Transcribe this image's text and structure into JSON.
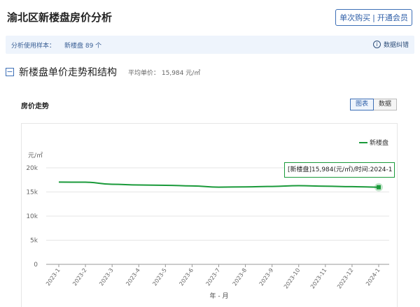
{
  "header": {
    "title": "渝北区新楼盘房价分析",
    "buy_single": "单次购买",
    "separator": "|",
    "open_member": "开通会员"
  },
  "sample": {
    "label": "分析使用样本：",
    "value": "新楼盘 89 个",
    "error_label": "数据纠错"
  },
  "section": {
    "title": "新楼盘单价走势和结构",
    "avg_label": "平均单价：",
    "avg_value": "15,984 元/㎡"
  },
  "chart_panel": {
    "title": "房价走势",
    "tab_chart": "图表",
    "tab_data": "数据",
    "tooltip": "[新楼盘]15,984(元/㎡)/时间:2024-1"
  },
  "colors": {
    "line": "#1a9a3a",
    "accent": "#3d6fb6"
  },
  "chart_data": {
    "type": "line",
    "ylabel": "元/㎡",
    "xlabel": "年 - 月",
    "ylim": [
      0,
      20000
    ],
    "y_ticks": [
      "0",
      "5k",
      "10k",
      "15k",
      "20k"
    ],
    "x": [
      "2023-1",
      "2023-2",
      "2023-3",
      "2023-4",
      "2023-5",
      "2023-6",
      "2023-7",
      "2023-8",
      "2023-9",
      "2023-10",
      "2023-11",
      "2023-12",
      "2024-1"
    ],
    "series": [
      {
        "name": "新楼盘",
        "values": [
          17050,
          17020,
          16600,
          16450,
          16380,
          16250,
          16000,
          16050,
          16150,
          16300,
          16200,
          16100,
          15984
        ]
      }
    ],
    "legend": "top-right",
    "grid": true
  }
}
